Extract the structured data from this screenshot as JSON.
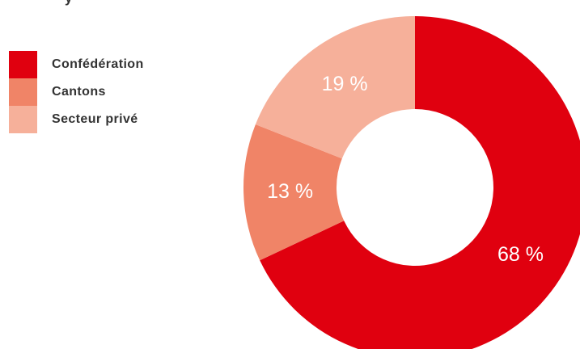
{
  "header_fragment": "y",
  "chart_data": {
    "type": "pie",
    "variant": "donut",
    "title": "",
    "categories": [
      "Confédération",
      "Cantons",
      "Secteur privé"
    ],
    "values": [
      68,
      13,
      19
    ],
    "labels": [
      "68 %",
      "13 %",
      "19 %"
    ],
    "colors": [
      "#e0000f",
      "#f08467",
      "#f6b09a"
    ],
    "start_angle_deg": 0,
    "direction": "clockwise",
    "legend": {
      "position": "top-left"
    }
  }
}
